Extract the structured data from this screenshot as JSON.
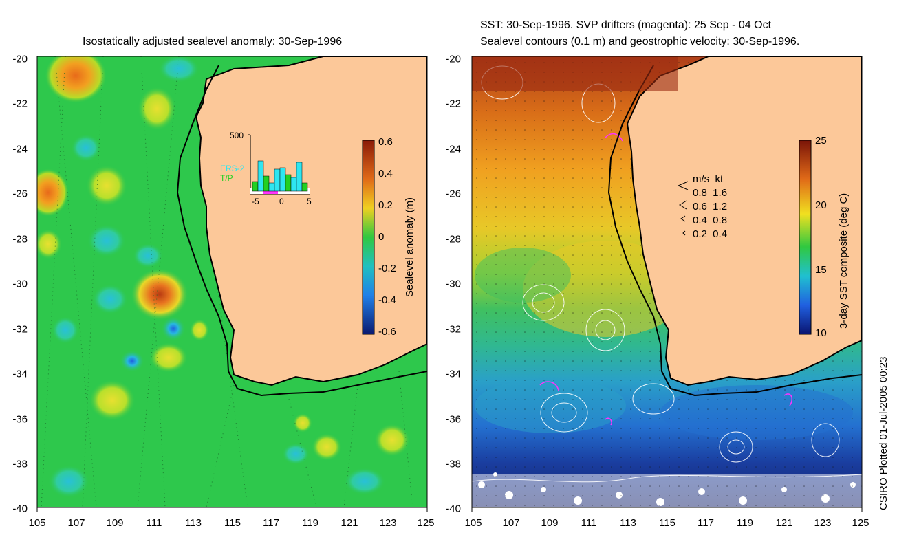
{
  "left_panel": {
    "title": "Isostatically adjusted sealevel anomaly: 30-Sep-1996",
    "colorbar": {
      "label": "Sealevel anomaly (m)",
      "ticks": [
        "0.6",
        "0.4",
        "0.2",
        "0",
        "-0.2",
        "-0.4",
        "-0.6"
      ]
    },
    "inset": {
      "y_max_label": "500",
      "x_ticks": [
        "-5",
        "0",
        "5"
      ],
      "series": [
        {
          "name": "ERS-2",
          "color": "#2ee6f0"
        },
        {
          "name": "T/P",
          "color": "#22d022"
        }
      ]
    }
  },
  "right_panel": {
    "title_line1": "SST: 30-Sep-1996. SVP drifters (magenta): 25 Sep - 04 Oct",
    "title_line2": "Sealevel contours (0.1 m) and geostrophic velocity: 30-Sep-1996.",
    "colorbar": {
      "label": "3-day SST composite (deg C)",
      "ticks": [
        "25",
        "20",
        "15",
        "10"
      ]
    },
    "velocity_legend": {
      "header": "m/s  kt",
      "rows": [
        "0.8  1.6",
        "0.6  1.2",
        "0.4  0.8",
        "0.2  0.4"
      ]
    }
  },
  "axes": {
    "x_ticks": [
      "105",
      "107",
      "109",
      "111",
      "113",
      "115",
      "117",
      "119",
      "121",
      "123",
      "125"
    ],
    "y_ticks": [
      "-20",
      "-22",
      "-24",
      "-26",
      "-28",
      "-30",
      "-32",
      "-34",
      "-36",
      "-38",
      "-40"
    ]
  },
  "footer": "CSIRO Plotted 01-Jul-2005 00:23",
  "colors": {
    "land": "#fcc899",
    "ocean_anomaly_base": "#2ec84c",
    "sst_warm": "#c8401a",
    "sst_cold": "#1a2ea8"
  }
}
